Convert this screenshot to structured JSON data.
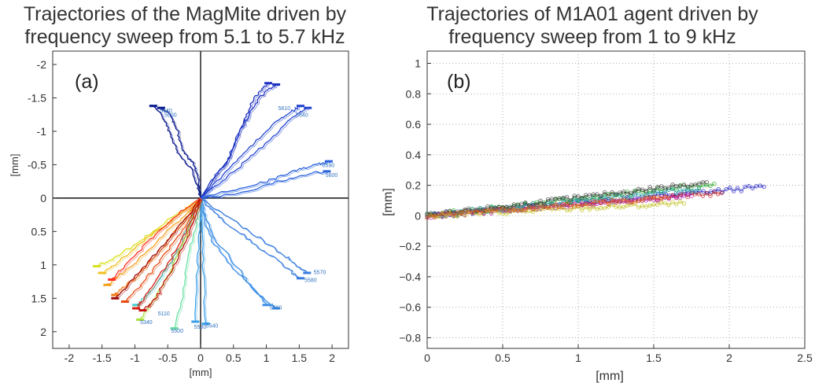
{
  "chart_data": [
    {
      "type": "line",
      "panel_label": "(a)",
      "title_lines": [
        "Trajectories of the MagMite driven by",
        "frequency sweep from 5.1 to 5.7 kHz"
      ],
      "xlabel": "[mm]",
      "ylabel": "[mm]",
      "xlim": [
        -2.25,
        2.25
      ],
      "ylim": [
        -2.2,
        2.25
      ],
      "y_reversed": true,
      "grid": false,
      "axes_cross_origin": true,
      "xticks": [
        "-2",
        "-1.5",
        "-1",
        "-0.5",
        "0",
        "0.5",
        "1",
        "1.5",
        "2"
      ],
      "yticks": [
        "-2",
        "-1.5",
        "-1",
        "-0.5",
        "0",
        "0.5",
        "1",
        "1.5",
        "2"
      ],
      "end_labels": [
        "5640",
        "5600",
        "5610",
        "5640",
        "5590",
        "5600",
        "5570",
        "5580",
        "5560",
        "5540",
        "5530",
        "5500",
        "5340",
        "5110"
      ],
      "series": [
        {
          "color": "#0a1a8c",
          "x": [
            0,
            -0.03,
            -0.1,
            -0.22,
            -0.3,
            -0.35,
            -0.42,
            -0.5,
            -0.6
          ],
          "y": [
            0,
            -0.25,
            -0.5,
            -0.65,
            -0.8,
            -1.0,
            -1.15,
            -1.3,
            -1.35
          ]
        },
        {
          "color": "#0a1a8c",
          "x": [
            0,
            -0.05,
            -0.15,
            -0.3,
            -0.38,
            -0.45,
            -0.52,
            -0.6,
            -0.72
          ],
          "y": [
            0,
            -0.2,
            -0.45,
            -0.6,
            -0.78,
            -0.95,
            -1.1,
            -1.25,
            -1.38
          ]
        },
        {
          "color": "#1a30c0",
          "x": [
            0,
            0.2,
            0.4,
            0.52,
            0.62,
            0.72,
            0.82,
            0.92,
            1.03
          ],
          "y": [
            0,
            -0.3,
            -0.55,
            -0.8,
            -1.05,
            -1.3,
            -1.5,
            -1.62,
            -1.72
          ]
        },
        {
          "color": "#1a30c0",
          "x": [
            0,
            0.25,
            0.45,
            0.55,
            0.68,
            0.8,
            0.92,
            1.05,
            1.15
          ],
          "y": [
            0,
            -0.35,
            -0.6,
            -0.9,
            -1.15,
            -1.35,
            -1.52,
            -1.63,
            -1.7
          ]
        },
        {
          "color": "#2244d0",
          "x": [
            0,
            0.3,
            0.55,
            0.78,
            1.0,
            1.2,
            1.4,
            1.52
          ],
          "y": [
            0,
            -0.3,
            -0.55,
            -0.8,
            -1.0,
            -1.18,
            -1.3,
            -1.38
          ]
        },
        {
          "color": "#2244d0",
          "x": [
            0,
            0.32,
            0.6,
            0.85,
            1.1,
            1.3,
            1.48,
            1.63
          ],
          "y": [
            0,
            -0.25,
            -0.48,
            -0.7,
            -0.92,
            -1.12,
            -1.25,
            -1.35
          ]
        },
        {
          "color": "#2a62dd",
          "x": [
            0,
            0.4,
            0.8,
            1.1,
            1.35,
            1.58,
            1.78,
            1.95
          ],
          "y": [
            0,
            -0.1,
            -0.2,
            -0.28,
            -0.38,
            -0.45,
            -0.5,
            -0.55
          ]
        },
        {
          "color": "#2a62dd",
          "x": [
            0,
            0.45,
            0.85,
            1.2,
            1.5,
            1.72,
            1.92
          ],
          "y": [
            0,
            -0.05,
            -0.15,
            -0.25,
            -0.32,
            -0.38,
            -0.4
          ]
        },
        {
          "color": "#3a7ee0",
          "x": [
            0,
            0.2,
            0.45,
            0.75,
            1.05,
            1.3,
            1.45,
            1.62
          ],
          "y": [
            0,
            0.15,
            0.3,
            0.5,
            0.7,
            0.88,
            1.0,
            1.12
          ]
        },
        {
          "color": "#3a7ee0",
          "x": [
            0,
            0.18,
            0.4,
            0.7,
            0.98,
            1.22,
            1.38,
            1.52
          ],
          "y": [
            0,
            0.18,
            0.38,
            0.6,
            0.8,
            0.98,
            1.1,
            1.2
          ]
        },
        {
          "color": "#3d8fe6",
          "x": [
            0,
            0.08,
            0.2,
            0.45,
            0.68,
            0.88,
            1.0
          ],
          "y": [
            0,
            0.3,
            0.6,
            0.9,
            1.2,
            1.45,
            1.6
          ]
        },
        {
          "color": "#3d8fe6",
          "x": [
            0,
            0.06,
            0.18,
            0.42,
            0.65,
            0.88,
            1.05,
            1.15
          ],
          "y": [
            0,
            0.35,
            0.65,
            0.95,
            1.22,
            1.45,
            1.58,
            1.65
          ]
        },
        {
          "color": "#3aa0ea",
          "x": [
            0,
            0.02,
            0.05,
            0.08
          ],
          "y": [
            0,
            0.6,
            1.2,
            1.88
          ]
        },
        {
          "color": "#3aa0ea",
          "x": [
            0,
            -0.02,
            -0.05,
            -0.08
          ],
          "y": [
            0,
            0.55,
            1.15,
            1.85
          ]
        },
        {
          "color": "#44d0c8",
          "x": [
            0,
            -0.1,
            -0.2,
            -0.3,
            -0.45,
            -0.62,
            -0.8,
            -0.98
          ],
          "y": [
            0,
            0.2,
            0.45,
            0.7,
            0.95,
            1.22,
            1.45,
            1.6
          ]
        },
        {
          "color": "#66e0a0",
          "x": [
            0,
            -0.05,
            -0.12,
            -0.2,
            -0.25,
            -0.3,
            -0.4
          ],
          "y": [
            0,
            0.3,
            0.6,
            0.95,
            1.3,
            1.62,
            1.95
          ]
        },
        {
          "color": "#a8e040",
          "x": [
            0,
            -0.1,
            -0.22,
            -0.35,
            -0.48,
            -0.62,
            -0.78,
            -0.92
          ],
          "y": [
            0,
            0.25,
            0.55,
            0.85,
            1.12,
            1.38,
            1.62,
            1.82
          ]
        },
        {
          "color": "#d8e020",
          "x": [
            0,
            -0.2,
            -0.45,
            -0.7,
            -0.95,
            -1.2,
            -1.42,
            -1.58
          ],
          "y": [
            0,
            0.15,
            0.3,
            0.5,
            0.66,
            0.82,
            0.95,
            1.02
          ]
        },
        {
          "color": "#f0c020",
          "x": [
            0,
            -0.25,
            -0.5,
            -0.75,
            -1.0,
            -1.2,
            -1.38,
            -1.5
          ],
          "y": [
            0,
            0.18,
            0.38,
            0.55,
            0.75,
            0.92,
            1.05,
            1.12
          ]
        },
        {
          "color": "#f5a020",
          "x": [
            0,
            -0.2,
            -0.45,
            -0.7,
            -0.92,
            -1.12,
            -1.3,
            -1.42
          ],
          "y": [
            0,
            0.22,
            0.45,
            0.68,
            0.9,
            1.08,
            1.2,
            1.3
          ]
        },
        {
          "color": "#f07a18",
          "x": [
            0,
            -0.18,
            -0.4,
            -0.6,
            -0.82,
            -1.0,
            -1.18,
            -1.3
          ],
          "y": [
            0,
            0.25,
            0.52,
            0.78,
            1.0,
            1.2,
            1.35,
            1.45
          ]
        },
        {
          "color": "#e84a10",
          "x": [
            0,
            -0.15,
            -0.35,
            -0.55,
            -0.72,
            -0.9,
            -1.05,
            -1.15
          ],
          "y": [
            0,
            0.28,
            0.58,
            0.85,
            1.08,
            1.3,
            1.45,
            1.55
          ]
        },
        {
          "color": "#d82010",
          "x": [
            0,
            -0.12,
            -0.28,
            -0.45,
            -0.62,
            -0.78,
            -0.9,
            -0.98
          ],
          "y": [
            0,
            0.3,
            0.62,
            0.9,
            1.15,
            1.38,
            1.55,
            1.65
          ]
        },
        {
          "color": "#c01010",
          "x": [
            0,
            -0.1,
            -0.22,
            -0.38,
            -0.52,
            -0.65,
            -0.78,
            -0.88
          ],
          "y": [
            0,
            0.32,
            0.65,
            0.95,
            1.22,
            1.45,
            1.6,
            1.68
          ]
        },
        {
          "color": "#a00a0a",
          "x": [
            0,
            -0.22,
            -0.48,
            -0.72,
            -0.95,
            -1.15,
            -1.3
          ],
          "y": [
            0,
            0.3,
            0.6,
            0.88,
            1.12,
            1.35,
            1.5
          ]
        },
        {
          "color": "#ff3020",
          "x": [
            0,
            -0.3,
            -0.55,
            -0.8,
            -1.02,
            -1.22,
            -1.35
          ],
          "y": [
            0,
            0.2,
            0.42,
            0.65,
            0.88,
            1.08,
            1.22
          ]
        }
      ]
    },
    {
      "type": "scatter",
      "panel_label": "(b)",
      "title_lines": [
        "Trajectories of M1A01 agent driven by",
        "frequency sweep from 1 to 9 kHz"
      ],
      "xlabel": "[mm]",
      "ylabel": "[mm]",
      "xlim": [
        0,
        2.5
      ],
      "ylim": [
        -0.87,
        1.08
      ],
      "grid": true,
      "xticks": [
        0,
        0.5,
        1,
        1.5,
        2,
        2.5
      ],
      "xtick_labels": [
        "0",
        "0.5",
        "1",
        "1.5",
        "2",
        "2.5"
      ],
      "yticks": [
        -0.8,
        -0.6,
        -0.4,
        -0.2,
        0,
        0.2,
        0.4,
        0.6,
        0.8,
        1
      ],
      "ytick_labels": [
        "−0.8",
        "−0.6",
        "−0.4",
        "−0.2",
        "0",
        "0.2",
        "0.4",
        "0.6",
        "0.8",
        "1"
      ],
      "series": [
        {
          "color": "#2020c0",
          "end": [
            2.23,
            0.19
          ],
          "slope": 0.085
        },
        {
          "color": "#c02020",
          "end": [
            1.95,
            0.15
          ],
          "slope": 0.077
        },
        {
          "color": "#20a020",
          "end": [
            1.9,
            0.21
          ],
          "slope": 0.11
        },
        {
          "color": "#b020b0",
          "end": [
            1.75,
            0.13
          ],
          "slope": 0.074
        },
        {
          "color": "#20a0a0",
          "end": [
            1.8,
            0.18
          ],
          "slope": 0.1
        },
        {
          "color": "#c0c020",
          "end": [
            1.7,
            0.08
          ],
          "slope": 0.047
        },
        {
          "color": "#404040",
          "end": [
            1.85,
            0.22
          ],
          "slope": 0.119
        },
        {
          "color": "#e06020",
          "end": [
            1.6,
            0.12
          ],
          "slope": 0.075
        }
      ]
    }
  ]
}
